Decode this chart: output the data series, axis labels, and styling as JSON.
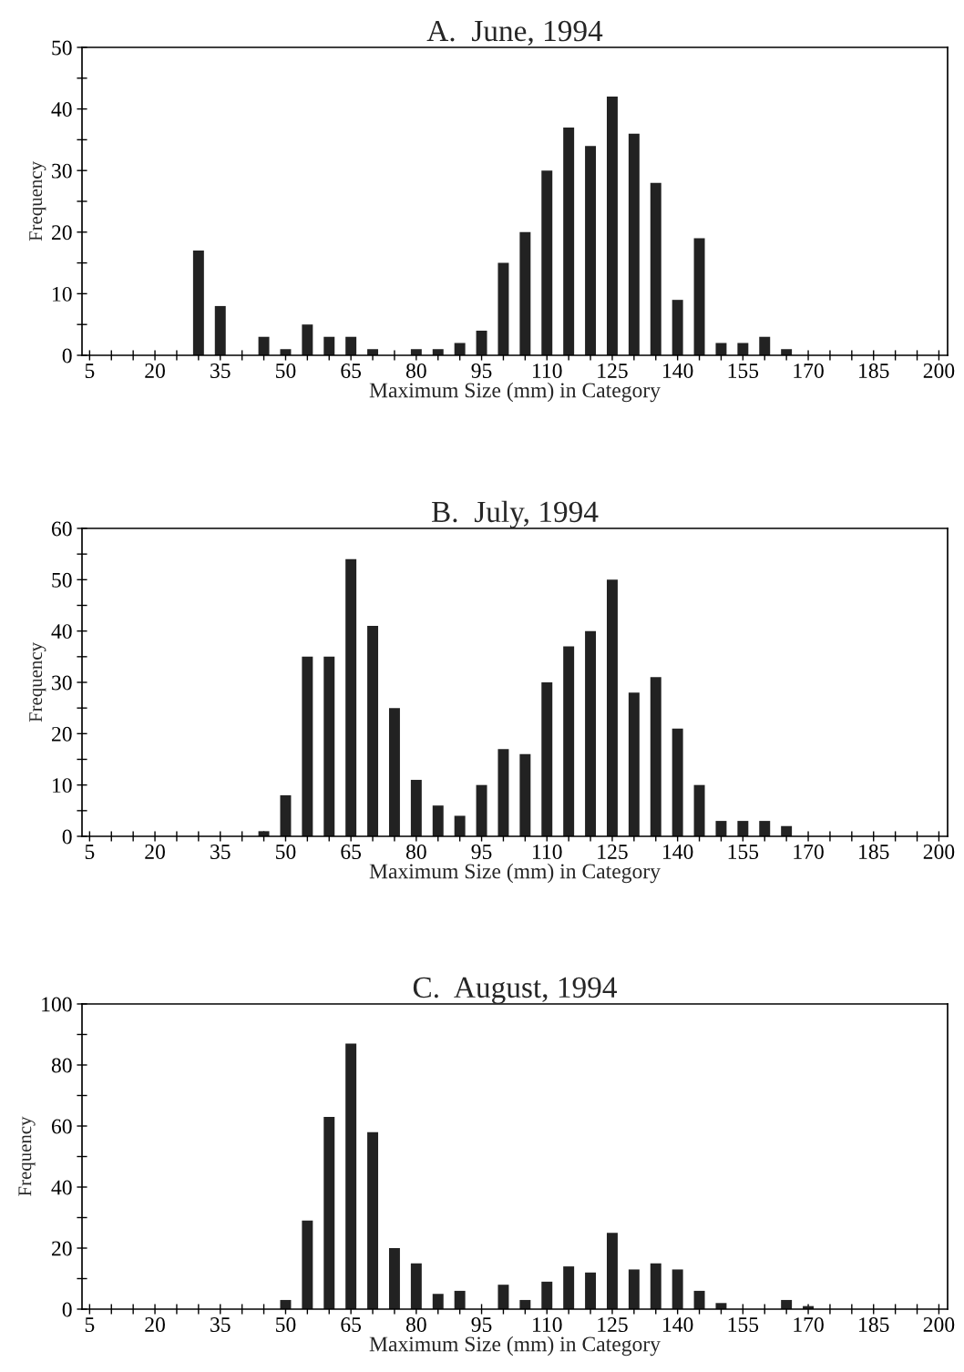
{
  "chart_data": [
    {
      "type": "bar",
      "title": "A.  June, 1994",
      "xlabel": "Maximum Size (mm) in Category",
      "ylabel": "Frequency",
      "categories": [
        "5",
        null,
        null,
        "20",
        null,
        null,
        "35",
        null,
        null,
        "50",
        null,
        null,
        "65",
        null,
        null,
        "80",
        null,
        null,
        "95",
        null,
        null,
        "110",
        null,
        null,
        "125",
        null,
        null,
        "140",
        null,
        null,
        "155",
        null,
        null,
        "170",
        null,
        null,
        "185",
        null,
        null,
        "200"
      ],
      "values": [
        0,
        0,
        0,
        0,
        0,
        17,
        8,
        0,
        3,
        1,
        5,
        3,
        3,
        1,
        0,
        1,
        1,
        2,
        4,
        15,
        20,
        30,
        37,
        34,
        42,
        36,
        28,
        9,
        19,
        2,
        2,
        3,
        1,
        0,
        0,
        0,
        0,
        0,
        0,
        0
      ],
      "color": "#222222",
      "ylim": [
        0,
        50
      ],
      "yticks": [
        0,
        {
          "value": 5,
          "label": null
        },
        10,
        {
          "value": 15,
          "label": null
        },
        20,
        {
          "value": 25,
          "label": null
        },
        30,
        {
          "value": 35,
          "label": null
        },
        40,
        {
          "value": 45,
          "label": null
        },
        50
      ],
      "grid": false,
      "legend": false
    },
    {
      "type": "bar",
      "title": "B.  July, 1994",
      "xlabel": "Maximum Size (mm) in Category",
      "ylabel": "Frequency",
      "categories": [
        "5",
        null,
        null,
        "20",
        null,
        null,
        "35",
        null,
        null,
        "50",
        null,
        null,
        "65",
        null,
        null,
        "80",
        null,
        null,
        "95",
        null,
        null,
        "110",
        null,
        null,
        "125",
        null,
        null,
        "140",
        null,
        null,
        "155",
        null,
        null,
        "170",
        null,
        null,
        "185",
        null,
        null,
        "200"
      ],
      "values": [
        0,
        0,
        0,
        0,
        0,
        0,
        0,
        0,
        1,
        8,
        35,
        35,
        54,
        41,
        25,
        11,
        6,
        4,
        10,
        17,
        16,
        30,
        37,
        40,
        50,
        28,
        31,
        21,
        10,
        3,
        3,
        3,
        2,
        0,
        0,
        0,
        0,
        0,
        0,
        0
      ],
      "color": "#222222",
      "ylim": [
        0,
        60
      ],
      "yticks": [
        0,
        {
          "value": 5,
          "label": null
        },
        10,
        {
          "value": 15,
          "label": null
        },
        20,
        {
          "value": 25,
          "label": null
        },
        30,
        {
          "value": 35,
          "label": null
        },
        40,
        {
          "value": 45,
          "label": null
        },
        50,
        {
          "value": 55,
          "label": null
        },
        60
      ],
      "grid": false,
      "legend": false
    },
    {
      "type": "bar",
      "title": "C.  August, 1994",
      "xlabel": "Maximum Size (mm) in Category",
      "ylabel": "Frequency",
      "categories": [
        "5",
        null,
        null,
        "20",
        null,
        null,
        "35",
        null,
        null,
        "50",
        null,
        null,
        "65",
        null,
        null,
        "80",
        null,
        null,
        "95",
        null,
        null,
        "110",
        null,
        null,
        "125",
        null,
        null,
        "140",
        null,
        null,
        "155",
        null,
        null,
        "170",
        null,
        null,
        "185",
        null,
        null,
        "200"
      ],
      "values": [
        0,
        0,
        0,
        0,
        0,
        0,
        0,
        0,
        0,
        3,
        29,
        63,
        87,
        58,
        20,
        15,
        5,
        6,
        0,
        8,
        3,
        9,
        14,
        12,
        25,
        13,
        15,
        13,
        6,
        2,
        0,
        0,
        3,
        1,
        0,
        0,
        0,
        0,
        0,
        0
      ],
      "color": "#222222",
      "ylim": [
        0,
        100
      ],
      "yticks": [
        0,
        {
          "value": 10,
          "label": null
        },
        20,
        {
          "value": 30,
          "label": null
        },
        40,
        {
          "value": 50,
          "label": null
        },
        60,
        {
          "value": 70,
          "label": null
        },
        80,
        {
          "value": 90,
          "label": null
        },
        100
      ],
      "grid": false,
      "legend": false
    }
  ]
}
